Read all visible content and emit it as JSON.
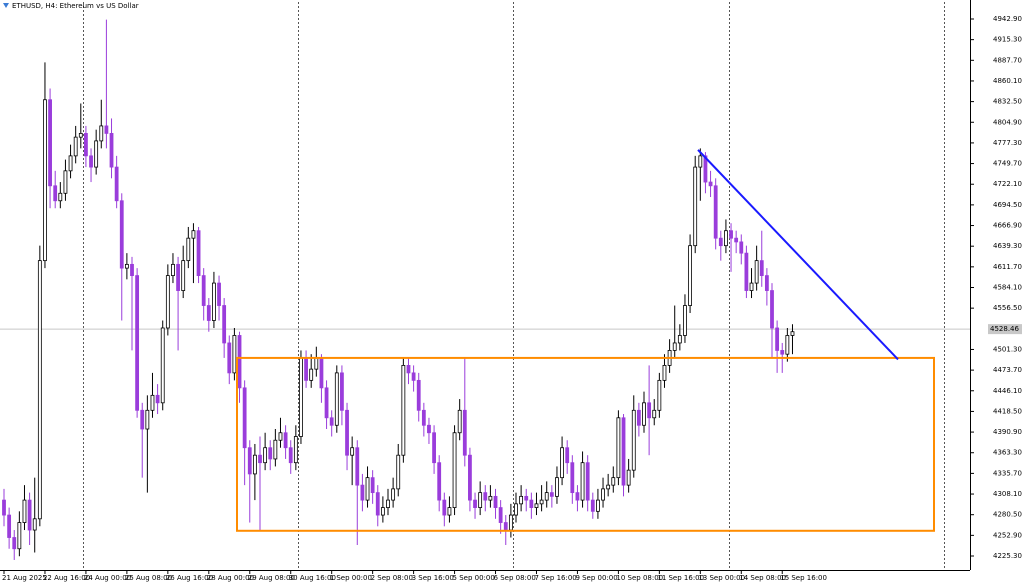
{
  "chart_data": {
    "type": "candlestick",
    "title": "ETHUSD, H4:  Ethereum vs US Dollar",
    "categories": [
      "21 Aug 2025",
      null,
      null,
      null,
      null,
      null,
      null,
      null,
      "22 Aug 16:00",
      null,
      null,
      null,
      null,
      null,
      null,
      null,
      "24 Aug 00:00",
      null,
      null,
      null,
      null,
      null,
      null,
      null,
      "25 Aug 08:00",
      null,
      null,
      null,
      null,
      null,
      null,
      null,
      "26 Aug 16:00",
      null,
      null,
      null,
      null,
      null,
      null,
      null,
      "28 Aug 00:00",
      null,
      null,
      null,
      null,
      null,
      null,
      null,
      "29 Aug 08:00",
      null,
      null,
      null,
      null,
      null,
      null,
      null,
      "30 Aug 16:00",
      null,
      null,
      null,
      null,
      null,
      null,
      null,
      "1 Sep 00:00",
      null,
      null,
      null,
      null,
      null,
      null,
      null,
      "2 Sep 08:00",
      null,
      null,
      null,
      null,
      null,
      null,
      null,
      "3 Sep 16:00",
      null,
      null,
      null,
      null,
      null,
      null,
      null,
      "5 Sep 00:00",
      null,
      null,
      null,
      null,
      null,
      null,
      null,
      "6 Sep 08:00",
      null,
      null,
      null,
      null,
      null,
      null,
      null,
      "7 Sep 16:00",
      null,
      null,
      null,
      null,
      null,
      null,
      null,
      "9 Sep 00:00",
      null,
      null,
      null,
      null,
      null,
      null,
      null,
      "10 Sep 08:00",
      null,
      null,
      null,
      null,
      null,
      null,
      null,
      "11 Sep 16:00",
      null,
      null,
      null,
      null,
      null,
      null,
      null,
      "13 Sep 00:00",
      null,
      null,
      null,
      null,
      null,
      null,
      null,
      "14 Sep 08:00",
      null,
      null,
      null,
      null,
      null,
      null,
      null,
      "15 Sep 16:00",
      null,
      null
    ],
    "open": [
      4300,
      4280,
      4250,
      4235,
      4270,
      4300,
      4260,
      4275,
      4620,
      4835,
      4720,
      4700,
      4710,
      4740,
      4760,
      4785,
      4790,
      4760,
      4745,
      4780,
      4800,
      4790,
      4745,
      4700,
      4610,
      4615,
      4600,
      4420,
      4395,
      4420,
      4440,
      4430,
      4530,
      4600,
      4615,
      4580,
      4620,
      4650,
      4660,
      4600,
      4560,
      4540,
      4590,
      4560,
      4510,
      4470,
      4520,
      4450,
      4370,
      4335,
      4360,
      4350,
      4370,
      4355,
      4380,
      4390,
      4370,
      4350,
      4385,
      4490,
      4460,
      4475,
      4490,
      4450,
      4410,
      4400,
      4470,
      4420,
      4360,
      4370,
      4320,
      4300,
      4330,
      4310,
      4280,
      4290,
      4300,
      4315,
      4360,
      4480,
      4470,
      4460,
      4420,
      4400,
      4390,
      4350,
      4300,
      4280,
      4290,
      4390,
      4420,
      4360,
      4300,
      4290,
      4310,
      4300,
      4305,
      4290,
      4270,
      4260,
      4280,
      4295,
      4305,
      4300,
      4290,
      4295,
      4300,
      4310,
      4305,
      4330,
      4370,
      4350,
      4310,
      4300,
      4350,
      4300,
      4285,
      4300,
      4315,
      4320,
      4330,
      4410,
      4320,
      4340,
      4420,
      4400,
      4430,
      4410,
      4420,
      4460,
      4480,
      4500,
      4510,
      4520,
      4560,
      4640,
      4745,
      4760,
      4725,
      4720,
      4650,
      4640,
      4660,
      4650,
      4645,
      4630,
      4580,
      4590,
      4620,
      4600,
      4580,
      4530,
      4500,
      4495,
      4520
    ],
    "high": [
      4315,
      4290,
      4260,
      4285,
      4320,
      4310,
      4330,
      4640,
      4885,
      4850,
      4740,
      4725,
      4755,
      4775,
      4800,
      4830,
      4800,
      4770,
      4795,
      4835,
      4942,
      4810,
      4760,
      4710,
      4630,
      4625,
      4610,
      4430,
      4440,
      4470,
      4455,
      4540,
      4615,
      4630,
      4625,
      4640,
      4665,
      4670,
      4665,
      4610,
      4570,
      4605,
      4600,
      4570,
      4520,
      4530,
      4525,
      4460,
      4380,
      4375,
      4385,
      4390,
      4380,
      4395,
      4410,
      4400,
      4380,
      4400,
      4500,
      4500,
      4495,
      4505,
      4495,
      4460,
      4420,
      4480,
      4480,
      4430,
      4385,
      4380,
      4335,
      4345,
      4340,
      4320,
      4305,
      4315,
      4330,
      4375,
      4490,
      4490,
      4480,
      4470,
      4430,
      4410,
      4400,
      4360,
      4310,
      4305,
      4400,
      4435,
      4490,
      4370,
      4310,
      4325,
      4320,
      4320,
      4315,
      4300,
      4280,
      4295,
      4310,
      4320,
      4315,
      4310,
      4310,
      4320,
      4325,
      4320,
      4345,
      4385,
      4380,
      4360,
      4320,
      4365,
      4360,
      4310,
      4315,
      4330,
      4335,
      4345,
      4420,
      4415,
      4355,
      4440,
      4430,
      4445,
      4480,
      4435,
      4470,
      4495,
      4515,
      4560,
      4535,
      4575,
      4655,
      4760,
      4770,
      4765,
      4740,
      4730,
      4660,
      4675,
      4670,
      4660,
      4655,
      4640,
      4610,
      4640,
      4660,
      4610,
      4590,
      4540,
      4510,
      4530,
      4535
    ],
    "low": [
      4265,
      4235,
      4220,
      4225,
      4260,
      4240,
      4230,
      4265,
      4610,
      4690,
      4690,
      4690,
      4700,
      4730,
      4750,
      4770,
      4745,
      4725,
      4735,
      4770,
      4770,
      4730,
      4690,
      4540,
      4595,
      4500,
      4410,
      4330,
      4310,
      4410,
      4415,
      4420,
      4520,
      4590,
      4500,
      4570,
      4610,
      4590,
      4590,
      4540,
      4525,
      4530,
      4540,
      4490,
      4455,
      4460,
      4430,
      4320,
      4270,
      4300,
      4260,
      4340,
      4340,
      4345,
      4370,
      4355,
      4335,
      4340,
      4375,
      4450,
      4450,
      4465,
      4430,
      4395,
      4385,
      4390,
      4400,
      4340,
      4320,
      4240,
      4285,
      4290,
      4295,
      4265,
      4270,
      4280,
      4290,
      4305,
      4350,
      4455,
      4445,
      4405,
      4385,
      4375,
      4335,
      4285,
      4265,
      4270,
      4280,
      4380,
      4345,
      4285,
      4275,
      4280,
      4285,
      4290,
      4275,
      4255,
      4240,
      4250,
      4270,
      4285,
      4285,
      4275,
      4280,
      4285,
      4290,
      4290,
      4295,
      4320,
      4335,
      4295,
      4285,
      4290,
      4285,
      4275,
      4275,
      4290,
      4305,
      4310,
      4320,
      4305,
      4310,
      4330,
      4385,
      4390,
      4360,
      4400,
      4410,
      4450,
      4470,
      4490,
      4500,
      4510,
      4550,
      4630,
      4700,
      4710,
      4705,
      4635,
      4620,
      4630,
      4605,
      4630,
      4615,
      4570,
      4570,
      4580,
      4585,
      4560,
      4490,
      4470,
      4470,
      4485,
      4495
    ],
    "close": [
      4280,
      4250,
      4235,
      4270,
      4300,
      4260,
      4275,
      4620,
      4835,
      4720,
      4700,
      4710,
      4740,
      4760,
      4785,
      4790,
      4760,
      4745,
      4780,
      4800,
      4790,
      4745,
      4700,
      4610,
      4615,
      4600,
      4420,
      4395,
      4420,
      4440,
      4430,
      4530,
      4600,
      4615,
      4580,
      4620,
      4650,
      4660,
      4600,
      4560,
      4540,
      4590,
      4560,
      4510,
      4470,
      4520,
      4450,
      4370,
      4335,
      4360,
      4350,
      4370,
      4355,
      4380,
      4390,
      4370,
      4350,
      4385,
      4490,
      4460,
      4475,
      4490,
      4450,
      4410,
      4400,
      4470,
      4420,
      4360,
      4370,
      4320,
      4300,
      4330,
      4310,
      4280,
      4290,
      4300,
      4315,
      4360,
      4480,
      4470,
      4460,
      4420,
      4400,
      4390,
      4350,
      4300,
      4280,
      4290,
      4390,
      4420,
      4360,
      4300,
      4290,
      4310,
      4300,
      4305,
      4290,
      4270,
      4260,
      4280,
      4295,
      4305,
      4300,
      4290,
      4295,
      4300,
      4310,
      4305,
      4330,
      4370,
      4350,
      4310,
      4300,
      4350,
      4300,
      4285,
      4300,
      4315,
      4320,
      4330,
      4410,
      4320,
      4340,
      4420,
      4400,
      4430,
      4410,
      4420,
      4460,
      4480,
      4500,
      4510,
      4520,
      4560,
      4640,
      4745,
      4760,
      4725,
      4720,
      4650,
      4640,
      4660,
      4650,
      4645,
      4630,
      4580,
      4590,
      4620,
      4600,
      4580,
      4530,
      4500,
      4495,
      4520,
      4525
    ],
    "up_color": "#ffffff",
    "down_color": "#9a3ddb",
    "ylim": [
      4206.6,
      4965.6
    ],
    "yticks": [
      {
        "value": 4942.9,
        "label": "4942.90"
      },
      {
        "value": 4915.3,
        "label": "4915.30"
      },
      {
        "value": 4887.7,
        "label": "4887.70"
      },
      {
        "value": 4860.1,
        "label": "4860.10"
      },
      {
        "value": 4832.5,
        "label": "4832.50"
      },
      {
        "value": 4804.9,
        "label": "4804.90"
      },
      {
        "value": 4777.3,
        "label": "4777.30"
      },
      {
        "value": 4749.7,
        "label": "4749.70"
      },
      {
        "value": 4722.1,
        "label": "4722.10"
      },
      {
        "value": 4694.5,
        "label": "4694.50"
      },
      {
        "value": 4666.9,
        "label": "4666.90"
      },
      {
        "value": 4639.3,
        "label": "4639.30"
      },
      {
        "value": 4611.7,
        "label": "4611.70"
      },
      {
        "value": 4584.1,
        "label": "4584.10"
      },
      {
        "value": 4556.5,
        "label": "4556.50"
      },
      {
        "value": 4501.3,
        "label": "4501.30"
      },
      {
        "value": 4473.7,
        "label": "4473.70"
      },
      {
        "value": 4446.1,
        "label": "4446.10"
      },
      {
        "value": 4418.5,
        "label": "4418.50"
      },
      {
        "value": 4390.9,
        "label": "4390.90"
      },
      {
        "value": 4363.3,
        "label": "4363.30"
      },
      {
        "value": 4335.7,
        "label": "4335.70"
      },
      {
        "value": 4308.1,
        "label": "4308.10"
      },
      {
        "value": 4280.5,
        "label": "4280.50"
      },
      {
        "value": 4252.9,
        "label": "4252.90"
      },
      {
        "value": 4225.3,
        "label": "4225.30"
      }
    ],
    "current_price": 4528.46,
    "zone": {
      "top": 4490,
      "bottom": 4259,
      "color": "#ff8c00"
    },
    "trendline": {
      "from": 4768,
      "to": 4488,
      "color": "#1a1aff"
    }
  }
}
